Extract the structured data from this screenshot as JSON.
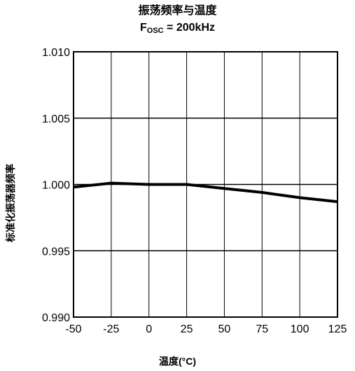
{
  "chart_data": {
    "type": "line",
    "title": "振荡频率与温度",
    "subtitle_main": "F",
    "subtitle_sub": "OSC",
    "subtitle_rest": " = 200kHz",
    "xlabel": "温度(°C)",
    "ylabel": "标准化振荡器频率",
    "xlim": [
      -50,
      125
    ],
    "ylim": [
      0.99,
      1.01
    ],
    "x_ticks": [
      "-50",
      "-25",
      "0",
      "25",
      "50",
      "75",
      "100",
      "125"
    ],
    "y_ticks": [
      "0.990",
      "0.995",
      "1.000",
      "1.005",
      "1.010"
    ],
    "grid": true,
    "series": [
      {
        "x": [
          -50,
          -25,
          0,
          25,
          50,
          75,
          100,
          125
        ],
        "y": [
          0.9998,
          1.0001,
          1.0,
          1.0,
          0.9997,
          0.9994,
          0.999,
          0.9987
        ]
      }
    ]
  }
}
